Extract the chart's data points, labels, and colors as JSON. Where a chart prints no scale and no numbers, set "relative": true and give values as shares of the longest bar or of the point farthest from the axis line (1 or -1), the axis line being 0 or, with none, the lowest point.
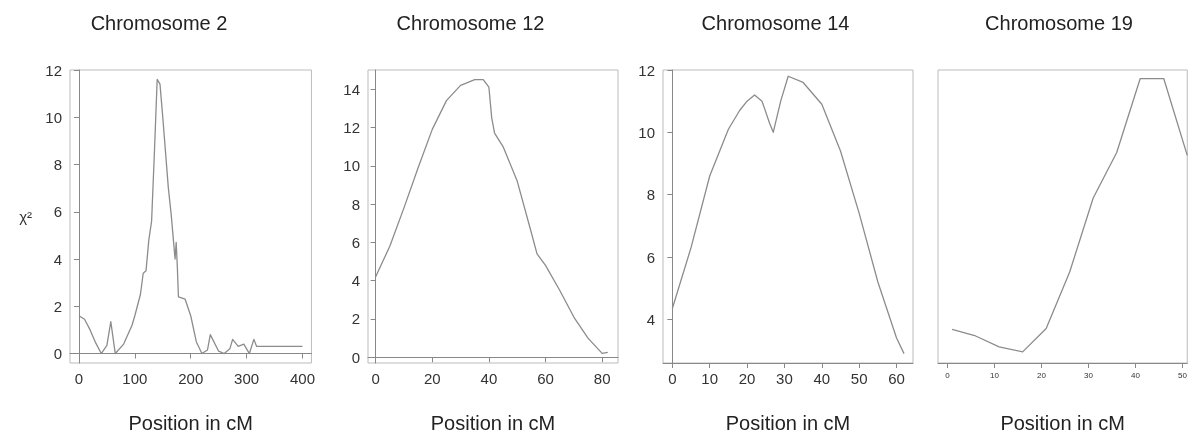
{
  "chart_data": [
    {
      "type": "line",
      "title": "Chromosome 2",
      "xlabel": "Position in cM",
      "ylabel": "χ²",
      "xlim": [
        -16,
        416
      ],
      "xticks": [
        0,
        100,
        200,
        300,
        400
      ],
      "ylim": [
        -0.4,
        12
      ],
      "yticks": [
        0,
        2,
        4,
        6,
        8,
        10,
        12
      ],
      "series": [
        {
          "color": "#8c8c8c",
          "x": [
            0,
            10,
            20,
            30,
            40,
            50,
            57,
            65,
            80,
            95,
            100,
            110,
            115,
            120,
            125,
            130,
            135,
            140,
            145,
            150,
            160,
            165,
            172,
            174,
            176,
            178,
            190,
            200,
            210,
            220,
            230,
            235,
            250,
            260,
            270,
            275,
            285,
            295,
            305,
            313,
            318,
            400
          ],
          "values": [
            1.6,
            1.45,
            1.0,
            0.45,
            0.0,
            0.35,
            1.35,
            0.0,
            0.4,
            1.2,
            1.6,
            2.5,
            3.4,
            3.5,
            4.8,
            5.6,
            8.5,
            11.6,
            11.4,
            10.0,
            7.0,
            5.9,
            4.0,
            4.7,
            3.7,
            2.4,
            2.3,
            1.6,
            0.5,
            0.0,
            0.15,
            0.8,
            0.1,
            0.0,
            0.2,
            0.6,
            0.3,
            0.4,
            0.0,
            0.6,
            0.3,
            0.3
          ]
        }
      ]
    },
    {
      "type": "line",
      "title": "Chromosome 12",
      "xlabel": "Position in cM",
      "xlim": [
        -2.7,
        85.6
      ],
      "xticks": [
        0,
        20,
        40,
        60,
        80
      ],
      "ylim": [
        -0.3,
        15
      ],
      "yticks": [
        0,
        2,
        4,
        6,
        8,
        10,
        12,
        14
      ],
      "series": [
        {
          "color": "#8c8c8c",
          "x": [
            0,
            5,
            10,
            15,
            20,
            25,
            30,
            35,
            38,
            40,
            41,
            42,
            45,
            50,
            55,
            57,
            60,
            65,
            70,
            75,
            80,
            82
          ],
          "values": [
            4.2,
            5.8,
            7.8,
            9.9,
            11.9,
            13.4,
            14.2,
            14.5,
            14.5,
            14.1,
            12.5,
            11.7,
            11.0,
            9.2,
            6.5,
            5.4,
            4.8,
            3.5,
            2.1,
            1.0,
            0.2,
            0.25
          ]
        }
      ]
    },
    {
      "type": "line",
      "title": "Chromosome 14",
      "xlabel": "Position in cM",
      "xlim": [
        -2.5,
        64.4
      ],
      "xticks": [
        0,
        10,
        20,
        30,
        40,
        50,
        60
      ],
      "ylim": [
        2.6,
        12
      ],
      "yticks": [
        4,
        6,
        8,
        10,
        12
      ],
      "series": [
        {
          "color": "#8c8c8c",
          "x": [
            0,
            5,
            10,
            15,
            18,
            20,
            22,
            24,
            26,
            27,
            29,
            31,
            35,
            40,
            45,
            50,
            55,
            60,
            62
          ],
          "values": [
            4.35,
            6.3,
            8.6,
            10.1,
            10.7,
            11.0,
            11.2,
            11.0,
            10.3,
            10.0,
            11.0,
            11.8,
            11.6,
            10.9,
            9.4,
            7.4,
            5.2,
            3.4,
            2.9
          ]
        }
      ]
    },
    {
      "type": "line",
      "title": "Chromosome 19",
      "xlabel": "Position in cM",
      "relative": true,
      "tick_labels": "x",
      "xlim": [
        -2,
        51
      ],
      "xticks": [
        0,
        10,
        20,
        30,
        40,
        50
      ],
      "series": [
        {
          "color": "#8c8c8c",
          "x": [
            1,
            6,
            11,
            16,
            21,
            26,
            31,
            36,
            41,
            46,
            51
          ],
          "values": [
            0.118,
            0.095,
            0.057,
            0.039,
            0.121,
            0.32,
            0.58,
            0.74,
            1,
            1,
            0.73
          ]
        }
      ]
    }
  ]
}
